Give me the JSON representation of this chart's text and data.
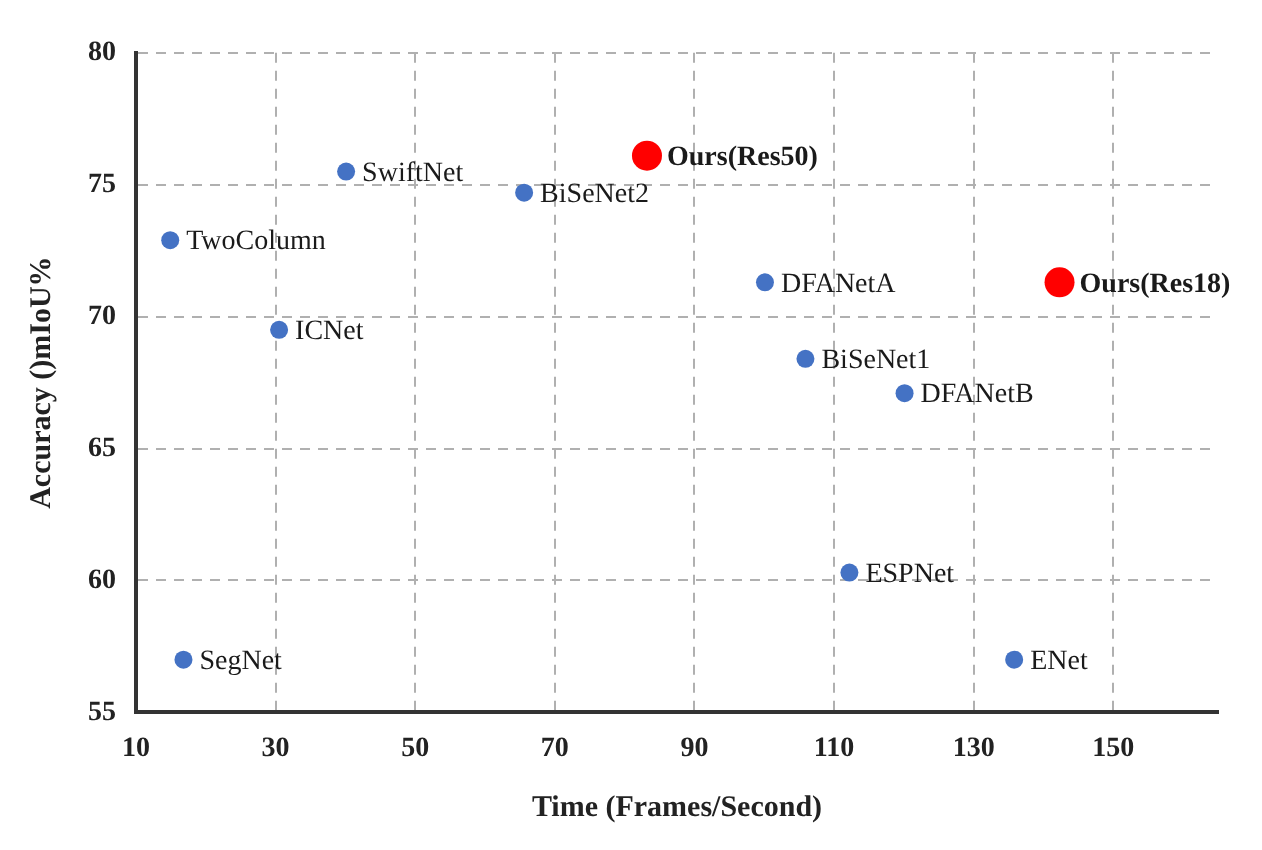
{
  "chart_data": {
    "type": "scatter",
    "xlabel": "Time (Frames/Second)",
    "ylabel": "Accuracy ()mIoU%",
    "xlim": [
      10,
      165
    ],
    "xticks": [
      10,
      30,
      50,
      70,
      90,
      110,
      130,
      150
    ],
    "ylim": [
      55,
      80
    ],
    "yticks": [
      55,
      60,
      65,
      70,
      75,
      80
    ],
    "grid": true,
    "legend": false,
    "marker": "circle",
    "series": [
      {
        "color": "#4472c4",
        "x": [
          14.9,
          40.1,
          65.6,
          30.5,
          100.1,
          105.9,
          120.1,
          16.8,
          112.2,
          135.8
        ],
        "values": [
          72.9,
          75.5,
          74.7,
          69.5,
          71.3,
          68.4,
          67.1,
          57,
          60.3,
          57
        ]
      },
      {
        "color": "#ff0000",
        "x": [
          83.2,
          142.3
        ],
        "values": [
          76.1,
          71.3
        ]
      }
    ],
    "annotations": [
      {
        "text": "TwoColumn",
        "x": 14.9,
        "y": 72.9
      },
      {
        "text": "SwiftNet",
        "x": 40.1,
        "y": 75.5
      },
      {
        "text": "BiSeNet2",
        "x": 65.6,
        "y": 74.7
      },
      {
        "text": "ICNet",
        "x": 30.5,
        "y": 69.5
      },
      {
        "text": "DFANetA",
        "x": 100.1,
        "y": 71.3
      },
      {
        "text": "BiSeNet1",
        "x": 105.9,
        "y": 68.4
      },
      {
        "text": "DFANetB",
        "x": 120.1,
        "y": 67.1
      },
      {
        "text": "SegNet",
        "x": 16.8,
        "y": 57
      },
      {
        "text": "ESPNet",
        "x": 112.2,
        "y": 60.3
      },
      {
        "text": "ENet",
        "x": 135.8,
        "y": 57
      },
      {
        "text": "Ours(Res50)",
        "x": 83.2,
        "y": 76.1
      },
      {
        "text": "Ours(Res18)",
        "x": 142.3,
        "y": 71.3
      }
    ]
  }
}
